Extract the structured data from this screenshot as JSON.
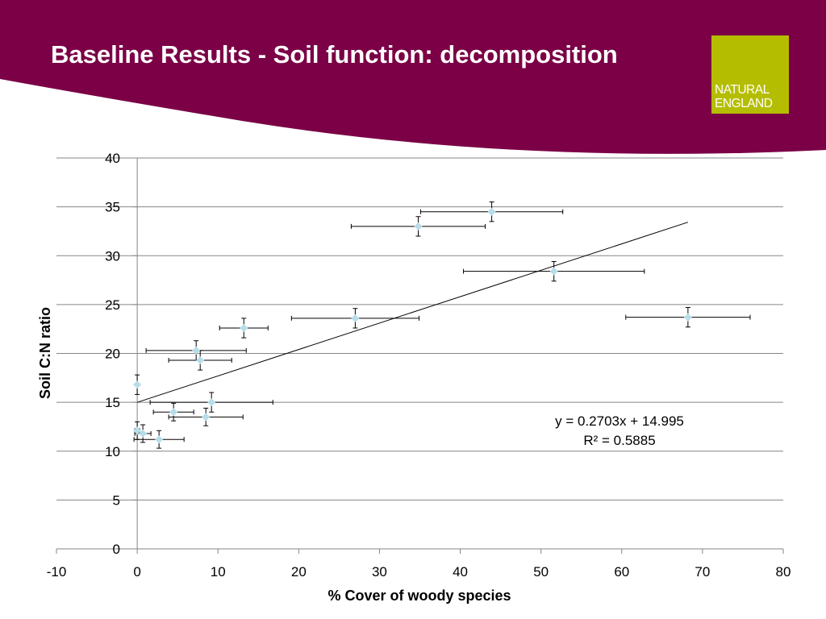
{
  "slide": {
    "title": "Baseline Results - Soil function: decomposition",
    "header_color": "#7b0046",
    "logo": {
      "line1": "NATURAL",
      "line2": "ENGLAND",
      "color": "#b5bd00"
    }
  },
  "chart_data": {
    "type": "scatter",
    "title": "",
    "xlabel": "% Cover of woody species",
    "ylabel": "Soil C:N ratio",
    "xlim": [
      -10,
      80
    ],
    "ylim": [
      0,
      40
    ],
    "x_ticks": [
      -10,
      0,
      10,
      20,
      30,
      40,
      50,
      60,
      70,
      80
    ],
    "y_ticks": [
      0,
      5,
      10,
      15,
      20,
      25,
      30,
      35,
      40
    ],
    "grid": "horizontal",
    "legend": "none",
    "marker_color": "#b7dde8",
    "points": [
      {
        "x": 0.0,
        "y": 16.8,
        "xerr": 0.0,
        "yerr": 1.0
      },
      {
        "x": 0.0,
        "y": 12.1,
        "xerr": 0.3,
        "yerr": 0.9
      },
      {
        "x": 0.7,
        "y": 11.8,
        "xerr": 1.0,
        "yerr": 0.9
      },
      {
        "x": 2.7,
        "y": 11.2,
        "xerr": 3.1,
        "yerr": 0.9
      },
      {
        "x": 4.5,
        "y": 14.0,
        "xerr": 2.5,
        "yerr": 0.9
      },
      {
        "x": 7.3,
        "y": 20.3,
        "xerr": 6.2,
        "yerr": 1.0
      },
      {
        "x": 7.8,
        "y": 19.3,
        "xerr": 3.9,
        "yerr": 1.0
      },
      {
        "x": 8.5,
        "y": 13.5,
        "xerr": 4.6,
        "yerr": 0.9
      },
      {
        "x": 9.2,
        "y": 15.0,
        "xerr": 7.6,
        "yerr": 1.0
      },
      {
        "x": 13.2,
        "y": 22.6,
        "xerr": 3.0,
        "yerr": 1.0
      },
      {
        "x": 27.0,
        "y": 23.6,
        "xerr": 7.9,
        "yerr": 1.0
      },
      {
        "x": 34.8,
        "y": 33.0,
        "xerr": 8.3,
        "yerr": 1.0
      },
      {
        "x": 43.9,
        "y": 34.5,
        "xerr": 8.8,
        "yerr": 1.0
      },
      {
        "x": 51.6,
        "y": 28.4,
        "xerr": 11.2,
        "yerr": 1.0
      },
      {
        "x": 68.2,
        "y": 23.7,
        "xerr": 7.7,
        "yerr": 1.0
      }
    ],
    "trendline": {
      "slope": 0.2703,
      "intercept": 14.995,
      "x_range": [
        0,
        68.2
      ],
      "equation": "y = 0.2703x + 14.995",
      "r_squared": "R² = 0.5885"
    }
  }
}
